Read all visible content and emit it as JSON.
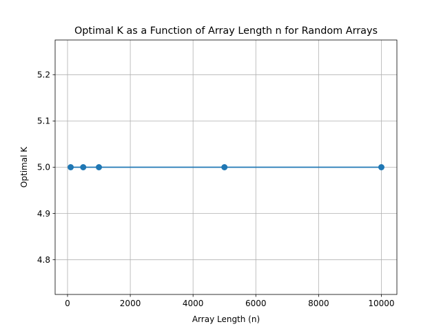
{
  "chart_data": {
    "type": "line",
    "title": "Optimal K as a Function of Array Length n for Random Arrays",
    "xlabel": "Array Length (n)",
    "ylabel": "Optimal K",
    "x": [
      100,
      500,
      1000,
      5000,
      10000
    ],
    "series": [
      {
        "values": [
          5.0,
          5.0,
          5.0,
          5.0,
          5.0
        ],
        "color": "#1f77b4",
        "marker": "circle"
      }
    ],
    "xlim": [
      -395,
      10495
    ],
    "ylim": [
      4.725,
      5.275
    ],
    "xticks": [
      0,
      2000,
      4000,
      6000,
      8000,
      10000
    ],
    "xtick_labels": [
      "0",
      "2000",
      "4000",
      "6000",
      "8000",
      "10000"
    ],
    "yticks": [
      4.8,
      4.9,
      5.0,
      5.1,
      5.2
    ],
    "ytick_labels": [
      "4.8",
      "4.9",
      "5.0",
      "5.1",
      "5.2"
    ],
    "grid": true,
    "legend": "none"
  }
}
